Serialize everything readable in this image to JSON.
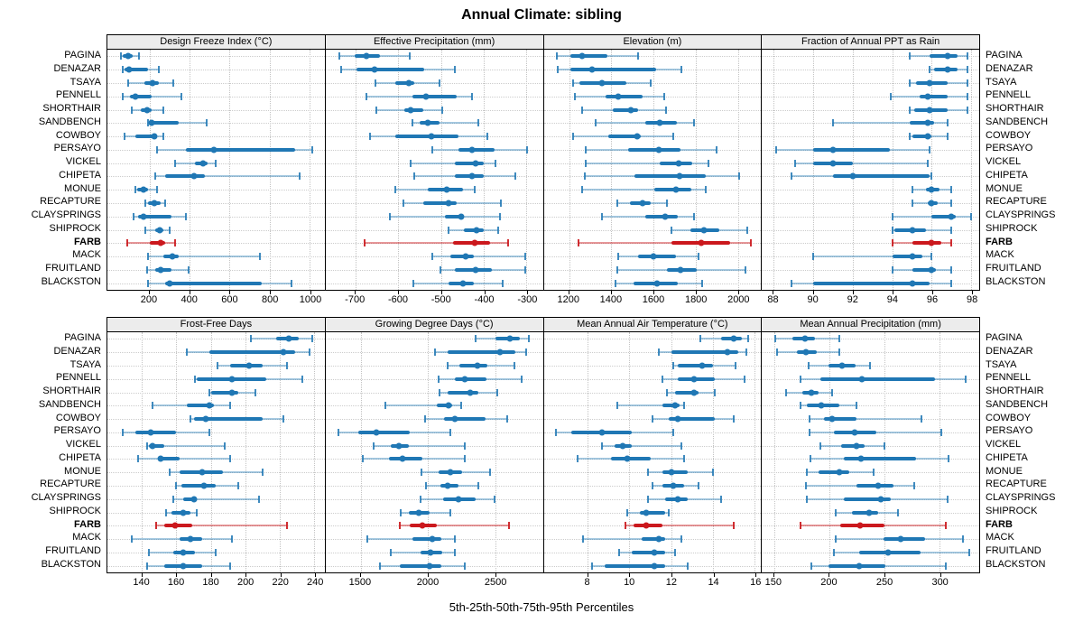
{
  "title": "Annual Climate: sibling",
  "caption": "5th-25th-50th-75th-95th Percentiles",
  "colors": {
    "normal": "#1f77b4",
    "normal_light": "rgba(31,119,180,0.40)",
    "normal_cap": "rgba(31,119,180,0.85)",
    "highlight": "#cb181d",
    "highlight_light": "rgba(203,24,29,0.45)",
    "highlight_cap": "rgba(203,24,29,0.9)",
    "strip_bg": "#ececec",
    "grid": "#c8c8c8"
  },
  "chart_data": {
    "type": "scatter",
    "subtype": "percentile-dotplot",
    "percentiles": [
      5,
      25,
      50,
      75,
      95
    ],
    "grid": "dotted both directions",
    "categories": [
      "PAGINA",
      "DENAZAR",
      "TSAYA",
      "PENNELL",
      "SHORTHAIR",
      "SANDBENCH",
      "COWBOY",
      "PERSAYO",
      "VICKEL",
      "CHIPETA",
      "MONUE",
      "RECAPTURE",
      "CLAYSPRINGS",
      "SHIPROCK",
      "FARB",
      "MACK",
      "FRUITLAND",
      "BLACKSTON"
    ],
    "highlight_category": "FARB",
    "panels": [
      {
        "title": "Design Freeze Index (°C)",
        "grid_row": 0,
        "grid_col": 0,
        "xlim": [
          -10,
          1075
        ],
        "ticks": [
          200,
          400,
          600,
          800,
          1000
        ],
        "values": [
          [
            58,
            67,
            92,
            115,
            149
          ],
          [
            65,
            74,
            98,
            194,
            245
          ],
          [
            95,
            175,
            215,
            245,
            320
          ],
          [
            65,
            104,
            130,
            209,
            359
          ],
          [
            110,
            155,
            190,
            209,
            269
          ],
          [
            194,
            200,
            209,
            344,
            485
          ],
          [
            74,
            130,
            224,
            239,
            269
          ],
          [
            239,
            380,
            524,
            929,
            1015
          ],
          [
            329,
            425,
            467,
            490,
            530
          ],
          [
            230,
            280,
            422,
            475,
            950
          ],
          [
            130,
            140,
            170,
            194,
            239
          ],
          [
            179,
            194,
            224,
            254,
            280
          ],
          [
            119,
            145,
            170,
            310,
            384
          ],
          [
            179,
            230,
            250,
            269,
            299
          ],
          [
            89,
            200,
            254,
            280,
            329
          ],
          [
            194,
            269,
            314,
            344,
            752
          ],
          [
            190,
            230,
            258,
            310,
            395
          ],
          [
            194,
            280,
            299,
            760,
            910
          ]
        ]
      },
      {
        "title": "Effective Precipitation (mm)",
        "grid_row": 0,
        "grid_col": 1,
        "xlim": [
          -770,
          -262
        ],
        "ticks": [
          -700,
          -600,
          -500,
          -400,
          -300
        ],
        "values": [
          [
            -738,
            -703,
            -674,
            -642,
            -573
          ],
          [
            -733,
            -697,
            -655,
            -539,
            -468
          ],
          [
            -653,
            -607,
            -576,
            -563,
            -504
          ],
          [
            -674,
            -566,
            -535,
            -463,
            -427
          ],
          [
            -652,
            -585,
            -571,
            -542,
            -497
          ],
          [
            -566,
            -549,
            -530,
            -504,
            -413
          ],
          [
            -667,
            -607,
            -523,
            -460,
            -392
          ],
          [
            -520,
            -460,
            -427,
            -374,
            -298
          ],
          [
            -571,
            -468,
            -420,
            -401,
            -372
          ],
          [
            -563,
            -468,
            -427,
            -401,
            -326
          ],
          [
            -607,
            -532,
            -487,
            -449,
            -422
          ],
          [
            -589,
            -542,
            -482,
            -463,
            -360
          ],
          [
            -619,
            -490,
            -454,
            -446,
            -362
          ],
          [
            -482,
            -446,
            -417,
            -401,
            -367
          ],
          [
            -679,
            -473,
            -422,
            -385,
            -344
          ],
          [
            -520,
            -479,
            -442,
            -424,
            -303
          ],
          [
            -502,
            -468,
            -420,
            -381,
            -303
          ],
          [
            -564,
            -482,
            -449,
            -424,
            -355
          ]
        ]
      },
      {
        "title": "Elevation (m)",
        "grid_row": 0,
        "grid_col": 2,
        "xlim": [
          1080,
          2110
        ],
        "ticks": [
          1200,
          1400,
          1600,
          1800,
          2000
        ],
        "values": [
          [
            1144,
            1207,
            1263,
            1381,
            1528
          ],
          [
            1148,
            1207,
            1307,
            1612,
            1734
          ],
          [
            1218,
            1249,
            1358,
            1472,
            1586
          ],
          [
            1228,
            1372,
            1433,
            1549,
            1653
          ],
          [
            1260,
            1409,
            1493,
            1528,
            1660
          ],
          [
            1326,
            1563,
            1628,
            1712,
            1793
          ],
          [
            1221,
            1386,
            1521,
            1539,
            1695
          ],
          [
            1277,
            1479,
            1626,
            1730,
            1898
          ],
          [
            1281,
            1628,
            1720,
            1782,
            1860
          ],
          [
            1274,
            1511,
            1726,
            1846,
            2005
          ],
          [
            1263,
            1605,
            1706,
            1779,
            1846
          ],
          [
            1427,
            1489,
            1549,
            1587,
            1665
          ],
          [
            1358,
            1563,
            1655,
            1717,
            1793
          ],
          [
            1684,
            1774,
            1839,
            1914,
            2043
          ],
          [
            1243,
            1684,
            1825,
            1965,
            2062
          ],
          [
            1434,
            1526,
            1598,
            1707,
            1813
          ],
          [
            1430,
            1664,
            1727,
            1807,
            2037
          ],
          [
            1420,
            1506,
            1617,
            1717,
            1832
          ]
        ]
      },
      {
        "title": "Fraction of Annual PPT as Rain",
        "grid_row": 0,
        "grid_col": 3,
        "xlim": [
          87.4,
          98.4
        ],
        "ticks": [
          88,
          90,
          92,
          94,
          96,
          98
        ],
        "values": [
          [
            94.9,
            95.9,
            96.8,
            97.3,
            97.8
          ],
          [
            95.9,
            96.1,
            96.8,
            97.3,
            97.8
          ],
          [
            94.9,
            95.2,
            95.9,
            96.8,
            97.8
          ],
          [
            93.9,
            95.4,
            95.8,
            96.8,
            97.8
          ],
          [
            94.9,
            95.1,
            95.9,
            96.8,
            97.8
          ],
          [
            91.0,
            94.9,
            95.8,
            96.1,
            96.8
          ],
          [
            94.9,
            95.0,
            95.8,
            96.0,
            96.8
          ],
          [
            88.1,
            90.0,
            91.0,
            93.9,
            95.9
          ],
          [
            89.1,
            90.0,
            91.0,
            92.0,
            95.8
          ],
          [
            88.9,
            91.0,
            92.0,
            95.9,
            96.0
          ],
          [
            95.0,
            95.7,
            96.0,
            96.4,
            97.0
          ],
          [
            95.0,
            95.8,
            96.0,
            96.3,
            97.0
          ],
          [
            94.0,
            96.0,
            97.0,
            97.2,
            98.0
          ],
          [
            94.0,
            94.1,
            95.0,
            95.7,
            97.0
          ],
          [
            94.0,
            95.0,
            96.0,
            96.5,
            97.0
          ],
          [
            90.0,
            94.0,
            95.0,
            95.5,
            96.0
          ],
          [
            94.0,
            95.0,
            96.0,
            96.2,
            97.0
          ],
          [
            88.9,
            90.0,
            95.0,
            95.9,
            97.0
          ]
        ]
      },
      {
        "title": "Frost-Free Days",
        "grid_row": 1,
        "grid_col": 0,
        "xlim": [
          120,
          246
        ],
        "ticks": [
          140,
          160,
          180,
          200,
          220,
          240
        ],
        "values": [
          [
            203,
            218,
            225,
            231,
            239
          ],
          [
            166,
            179,
            222,
            229,
            237
          ],
          [
            184,
            191,
            202,
            210,
            224
          ],
          [
            171,
            172,
            192,
            212,
            233
          ],
          [
            179,
            180,
            192,
            196,
            206
          ],
          [
            146,
            166,
            179,
            182,
            191
          ],
          [
            168,
            170,
            177,
            210,
            222
          ],
          [
            129,
            136,
            145,
            160,
            179
          ],
          [
            143,
            144,
            146,
            153,
            188
          ],
          [
            138,
            150,
            151,
            162,
            191
          ],
          [
            156,
            162,
            175,
            187,
            210
          ],
          [
            160,
            163,
            176,
            183,
            196
          ],
          [
            158,
            164,
            170,
            171,
            208
          ],
          [
            154,
            157,
            164,
            168,
            172
          ],
          [
            148,
            153,
            159,
            169,
            224
          ],
          [
            134,
            162,
            168,
            175,
            192
          ],
          [
            144,
            158,
            164,
            171,
            183
          ],
          [
            143,
            153,
            164,
            175,
            191
          ]
        ]
      },
      {
        "title": "Growing Degree Days (°C)",
        "grid_row": 1,
        "grid_col": 1,
        "xlim": [
          1240,
          2855
        ],
        "ticks": [
          1500,
          2000,
          2500
        ],
        "values": [
          [
            2353,
            2500,
            2611,
            2687,
            2753
          ],
          [
            2056,
            2149,
            2538,
            2649,
            2731
          ],
          [
            2149,
            2233,
            2371,
            2442,
            2642
          ],
          [
            2078,
            2198,
            2278,
            2433,
            2700
          ],
          [
            2087,
            2149,
            2316,
            2376,
            2516
          ],
          [
            1687,
            2064,
            2153,
            2182,
            2249
          ],
          [
            1982,
            2122,
            2198,
            2427,
            2593
          ],
          [
            1338,
            1482,
            1616,
            1864,
            2167
          ],
          [
            1598,
            1722,
            1782,
            1860,
            2278
          ],
          [
            1516,
            1709,
            1811,
            1960,
            2278
          ],
          [
            1953,
            2078,
            2167,
            2256,
            2464
          ],
          [
            1989,
            2093,
            2149,
            2227,
            2376
          ],
          [
            1944,
            2116,
            2227,
            2353,
            2493
          ],
          [
            1798,
            1856,
            1931,
            2011,
            2167
          ],
          [
            1789,
            1864,
            1960,
            2064,
            2604
          ],
          [
            1553,
            1887,
            2033,
            2100,
            2204
          ],
          [
            1722,
            1944,
            2020,
            2109,
            2198
          ],
          [
            1642,
            1789,
            2011,
            2100,
            2278
          ]
        ]
      },
      {
        "title": "Mean Annual Air Temperature (°C)",
        "grid_row": 1,
        "grid_col": 2,
        "xlim": [
          5.9,
          16.3
        ],
        "ticks": [
          8,
          10,
          12,
          14,
          16
        ],
        "values": [
          [
            13.4,
            14.4,
            15.0,
            15.4,
            15.7
          ],
          [
            11.4,
            12.0,
            14.7,
            15.2,
            15.6
          ],
          [
            12.1,
            12.3,
            13.5,
            14.0,
            15.1
          ],
          [
            11.6,
            12.3,
            13.1,
            14.1,
            15.5
          ],
          [
            11.8,
            12.2,
            13.1,
            13.3,
            14.1
          ],
          [
            9.4,
            11.6,
            12.2,
            12.4,
            12.6
          ],
          [
            11.1,
            11.9,
            12.3,
            14.1,
            15.0
          ],
          [
            6.5,
            7.2,
            8.7,
            10.1,
            12.1
          ],
          [
            8.7,
            9.3,
            9.7,
            10.1,
            12.5
          ],
          [
            7.5,
            9.1,
            9.9,
            11.0,
            12.6
          ],
          [
            10.9,
            11.6,
            12.0,
            12.8,
            14.0
          ],
          [
            11.1,
            11.6,
            12.1,
            12.6,
            13.3
          ],
          [
            10.9,
            11.7,
            12.3,
            12.8,
            14.4
          ],
          [
            9.9,
            10.5,
            10.8,
            11.7,
            11.9
          ],
          [
            9.8,
            10.2,
            10.8,
            11.6,
            15.0
          ],
          [
            7.8,
            10.6,
            11.4,
            11.7,
            12.5
          ],
          [
            9.5,
            10.1,
            11.2,
            11.7,
            12.2
          ],
          [
            8.2,
            8.8,
            11.2,
            11.7,
            12.8
          ]
        ]
      },
      {
        "title": "Mean Annual Precipitation (mm)",
        "grid_row": 1,
        "grid_col": 3,
        "xlim": [
          139,
          336
        ],
        "ticks": [
          150,
          200,
          250,
          300
        ],
        "values": [
          [
            151,
            167,
            178,
            187,
            209
          ],
          [
            153,
            171,
            179,
            189,
            209
          ],
          [
            181,
            199,
            212,
            224,
            237
          ],
          [
            174,
            192,
            230,
            296,
            324
          ],
          [
            161,
            176,
            184,
            190,
            203
          ],
          [
            174,
            180,
            193,
            209,
            225
          ],
          [
            182,
            195,
            203,
            225,
            284
          ],
          [
            182,
            204,
            223,
            243,
            302
          ],
          [
            192,
            211,
            225,
            232,
            250
          ],
          [
            183,
            213,
            229,
            279,
            308
          ],
          [
            180,
            190,
            209,
            218,
            240
          ],
          [
            179,
            225,
            244,
            258,
            277
          ],
          [
            180,
            213,
            247,
            256,
            307
          ],
          [
            206,
            221,
            236,
            244,
            262
          ],
          [
            174,
            210,
            228,
            250,
            306
          ],
          [
            206,
            249,
            265,
            287,
            321
          ],
          [
            204,
            227,
            253,
            283,
            327
          ],
          [
            184,
            199,
            227,
            251,
            306
          ]
        ]
      }
    ]
  }
}
